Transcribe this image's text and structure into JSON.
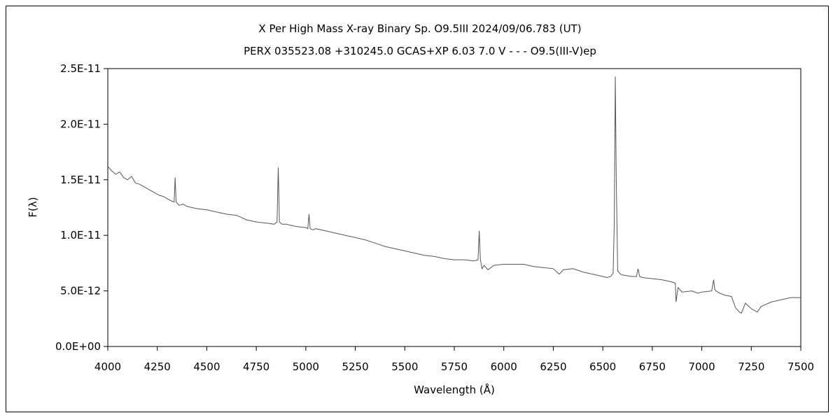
{
  "chart_data": {
    "type": "line",
    "title": "X Per    High Mass X-ray Binary    Sp. O9.5III    2024/09/06.783 (UT)",
    "subtitle": "PERX 035523.08 +310245.0 GCAS+XP 6.03 7.0 V - - - O9.5(III-V)ep",
    "xlabel": "Wavelength (Å)",
    "ylabel": "F(λ)",
    "xlim": [
      4000,
      7500
    ],
    "ylim": [
      0,
      2.5e-11
    ],
    "x_ticks": [
      4000,
      4250,
      4500,
      4750,
      5000,
      5250,
      5500,
      5750,
      6000,
      6250,
      6500,
      6750,
      7000,
      7250,
      7500
    ],
    "y_ticks": [
      {
        "value": 0,
        "label": "0.0E+00"
      },
      {
        "value": 5e-12,
        "label": "5.0E-12"
      },
      {
        "value": 1e-11,
        "label": "1.0E-11"
      },
      {
        "value": 1.5e-11,
        "label": "1.5E-11"
      },
      {
        "value": 2e-11,
        "label": "2.0E-11"
      },
      {
        "value": 2.5e-11,
        "label": "2.5E-11"
      }
    ],
    "grid": false,
    "legend": "none",
    "line_color": "#555555",
    "series": [
      {
        "x": [
          4000,
          4020,
          4040,
          4060,
          4080,
          4100,
          4120,
          4140,
          4160,
          4180,
          4200,
          4220,
          4240,
          4260,
          4280,
          4300,
          4320,
          4335,
          4340,
          4345,
          4360,
          4380,
          4400,
          4450,
          4500,
          4550,
          4600,
          4650,
          4700,
          4750,
          4800,
          4840,
          4855,
          4861,
          4867,
          4880,
          4900,
          4950,
          5000,
          5010,
          5016,
          5022,
          5035,
          5050,
          5100,
          5150,
          5200,
          5250,
          5300,
          5350,
          5400,
          5450,
          5500,
          5550,
          5600,
          5650,
          5700,
          5750,
          5800,
          5850,
          5870,
          5876,
          5882,
          5890,
          5900,
          5920,
          5950,
          6000,
          6050,
          6100,
          6150,
          6200,
          6250,
          6280,
          6300,
          6350,
          6400,
          6450,
          6500,
          6520,
          6540,
          6552,
          6558,
          6563,
          6568,
          6575,
          6590,
          6610,
          6650,
          6670,
          6678,
          6686,
          6700,
          6750,
          6800,
          6850,
          6866,
          6870,
          6880,
          6900,
          6950,
          6980,
          7000,
          7050,
          7060,
          7066,
          7072,
          7090,
          7120,
          7150,
          7170,
          7190,
          7200,
          7220,
          7250,
          7280,
          7300,
          7350,
          7400,
          7450,
          7500
        ],
        "y": [
          1.62e-11,
          1.58e-11,
          1.55e-11,
          1.57e-11,
          1.52e-11,
          1.5e-11,
          1.53e-11,
          1.47e-11,
          1.46e-11,
          1.44e-11,
          1.42e-11,
          1.4e-11,
          1.38e-11,
          1.36e-11,
          1.35e-11,
          1.33e-11,
          1.31e-11,
          1.3e-11,
          1.52e-11,
          1.3e-11,
          1.27e-11,
          1.28e-11,
          1.26e-11,
          1.24e-11,
          1.23e-11,
          1.21e-11,
          1.19e-11,
          1.18e-11,
          1.14e-11,
          1.12e-11,
          1.11e-11,
          1.1e-11,
          1.12e-11,
          1.61e-11,
          1.12e-11,
          1.1e-11,
          1.1e-11,
          1.08e-11,
          1.07e-11,
          1.06e-11,
          1.19e-11,
          1.06e-11,
          1.05e-11,
          1.06e-11,
          1.04e-11,
          1.02e-11,
          1e-11,
          9.8e-12,
          9.6e-12,
          9.3e-12,
          9e-12,
          8.8e-12,
          8.6e-12,
          8.4e-12,
          8.2e-12,
          8.1e-12,
          7.9e-12,
          7.8e-12,
          7.8e-12,
          7.7e-12,
          7.8e-12,
          1.04e-11,
          7.8e-12,
          7e-12,
          7.3e-12,
          6.9e-12,
          7.3e-12,
          7.4e-12,
          7.4e-12,
          7.4e-12,
          7.2e-12,
          7.1e-12,
          7e-12,
          6.5e-12,
          6.9e-12,
          7e-12,
          6.7e-12,
          6.5e-12,
          6.3e-12,
          6.2e-12,
          6.3e-12,
          6.6e-12,
          1.1e-11,
          2.43e-11,
          1.5e-11,
          6.8e-12,
          6.5e-12,
          6.4e-12,
          6.3e-12,
          6.3e-12,
          7e-12,
          6.3e-12,
          6.2e-12,
          6.1e-12,
          6e-12,
          5.8e-12,
          5.7e-12,
          4e-12,
          5.3e-12,
          4.9e-12,
          5e-12,
          4.8e-12,
          4.9e-12,
          5e-12,
          6e-12,
          5.1e-12,
          5e-12,
          4.8e-12,
          4.6e-12,
          4.5e-12,
          3.5e-12,
          3.1e-12,
          3e-12,
          3.9e-12,
          3.4e-12,
          3.1e-12,
          3.6e-12,
          4e-12,
          4.2e-12,
          4.4e-12,
          4.4e-12
        ]
      }
    ]
  }
}
